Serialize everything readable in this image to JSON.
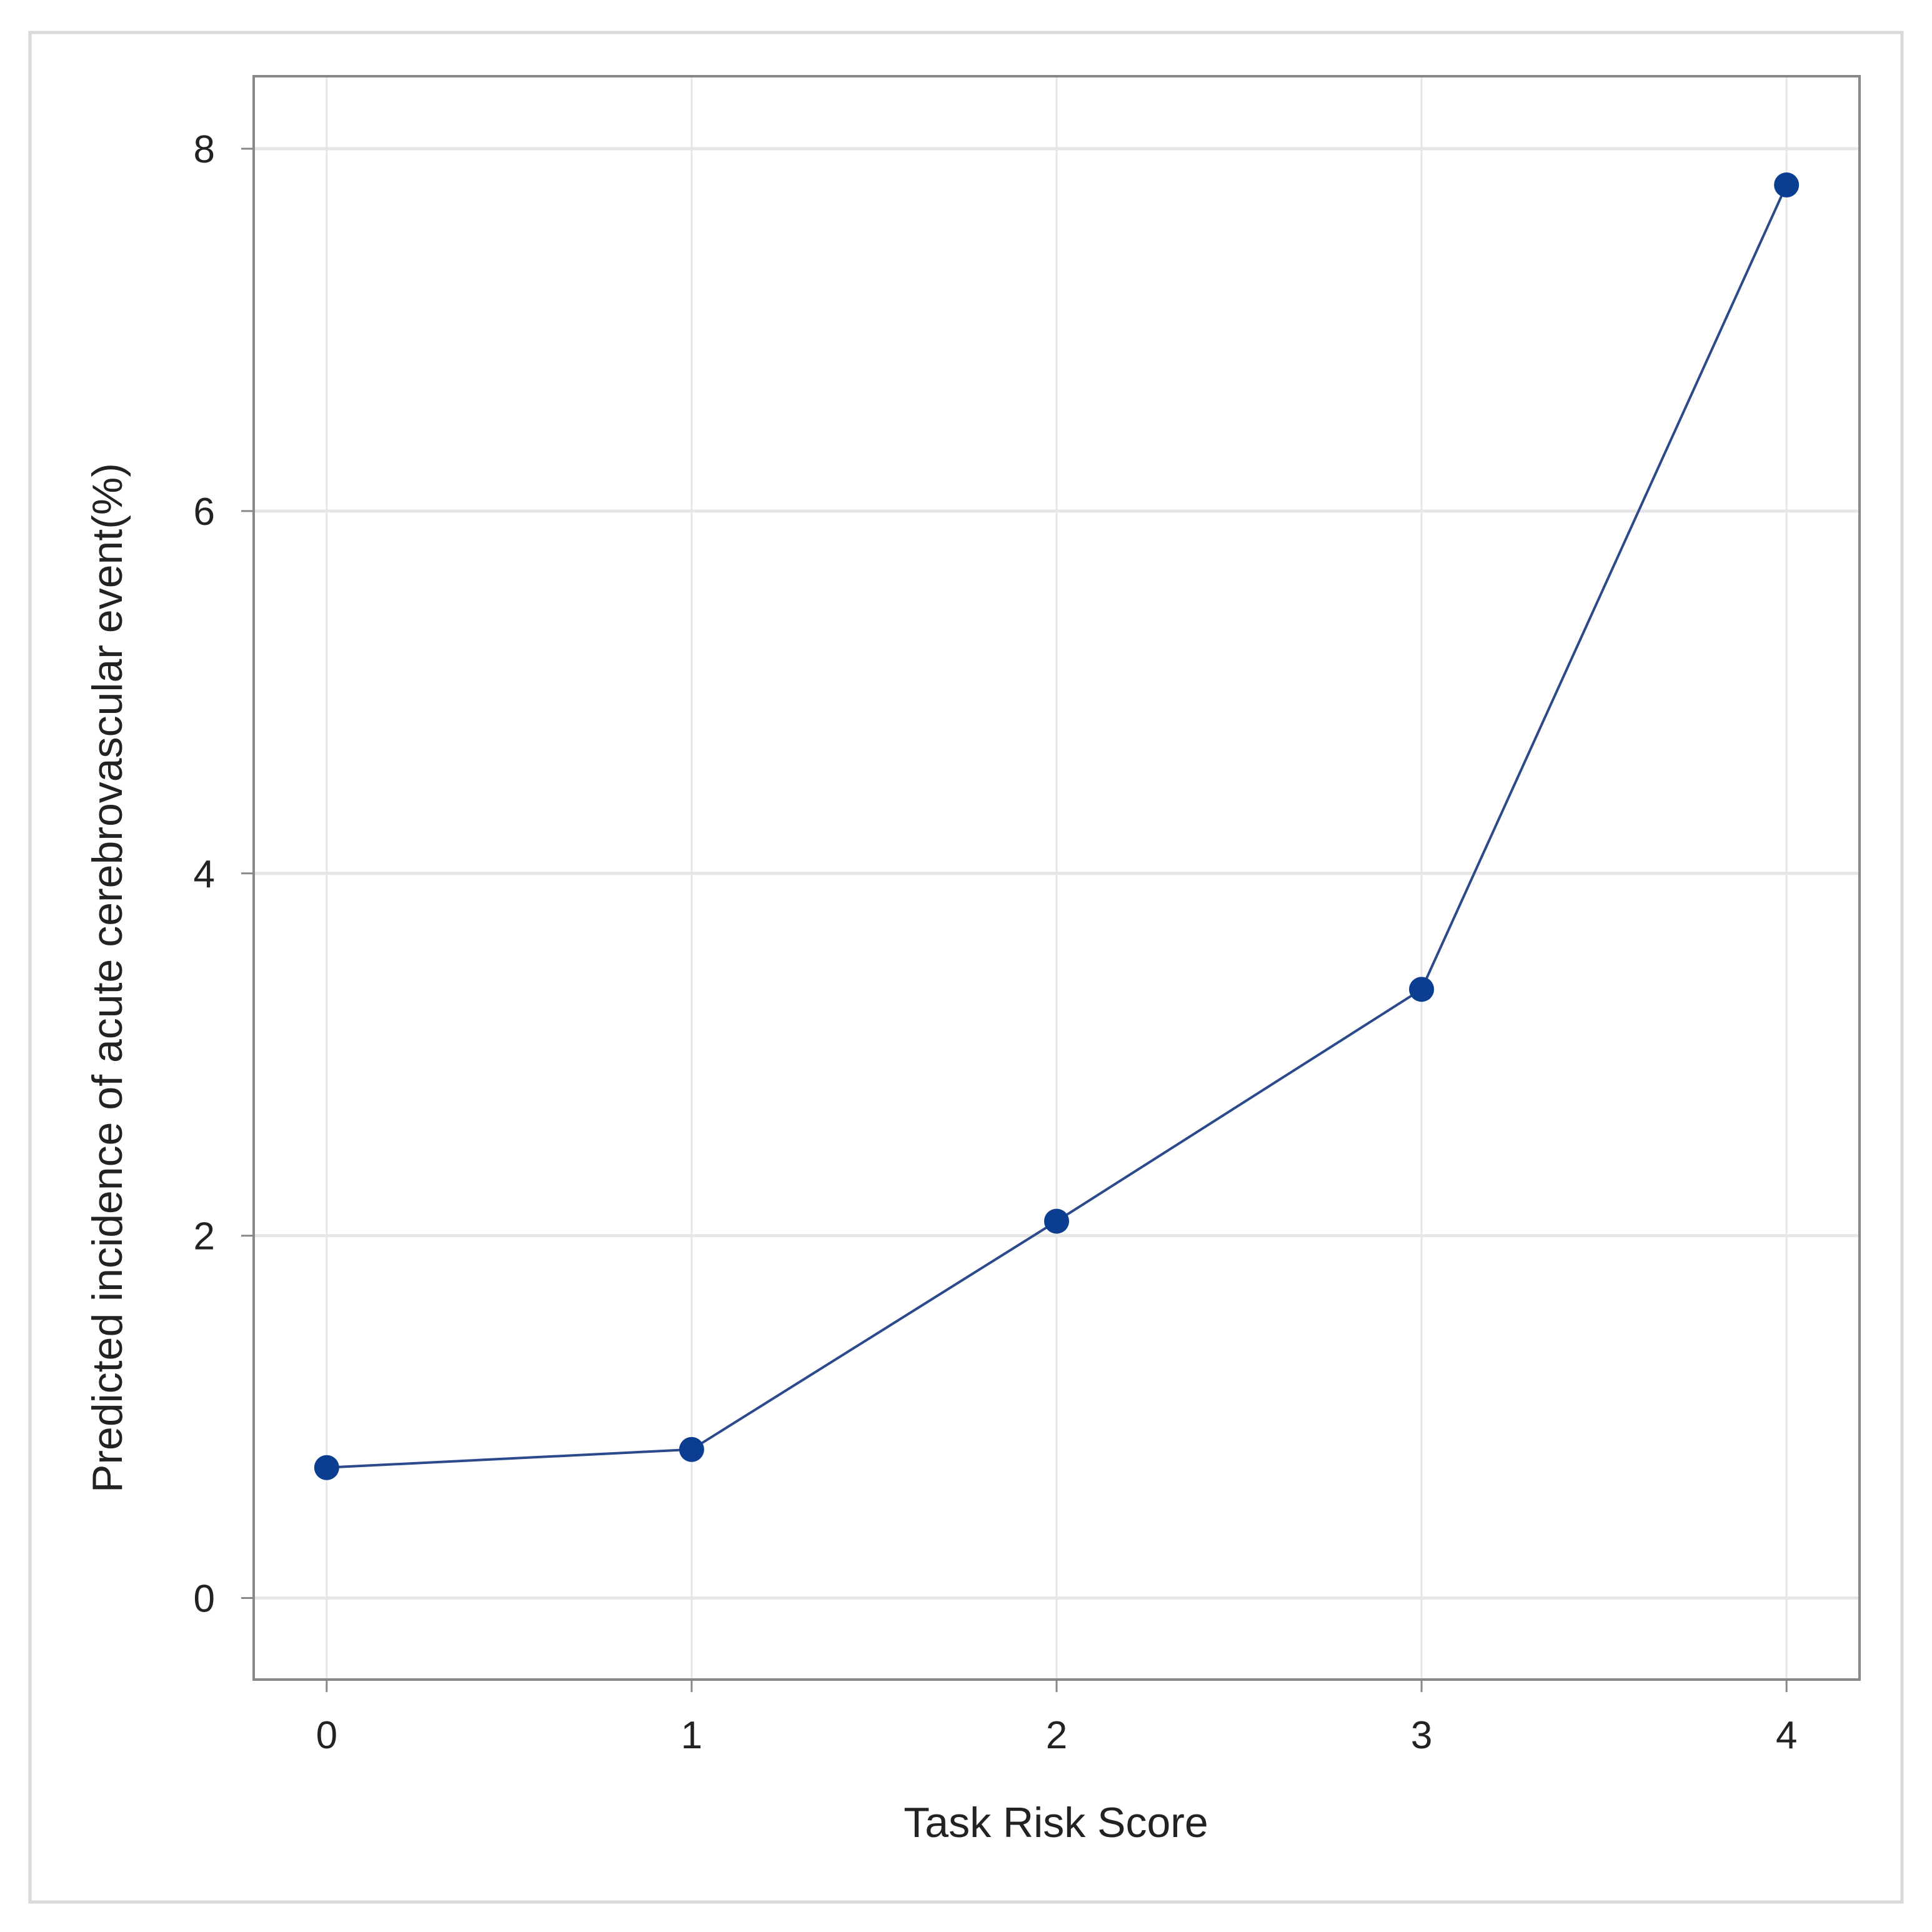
{
  "chart_data": {
    "type": "line",
    "title": "",
    "xlabel": "Task Risk Score",
    "ylabel": "Predicted incidence of acute cerebrovascular event(%)",
    "x": [
      0,
      1,
      2,
      3,
      4
    ],
    "series": [
      {
        "values": [
          0.72,
          0.82,
          2.08,
          3.36,
          7.8
        ]
      }
    ],
    "xlim": [
      -0.2,
      4.2
    ],
    "ylim": [
      -0.45,
      8.4
    ],
    "xticks": [
      0,
      1,
      2,
      3,
      4
    ],
    "yticks": [
      0,
      2,
      4,
      6,
      8
    ],
    "xtick_labels": [
      "0",
      "1",
      "2",
      "3",
      "4"
    ],
    "ytick_labels": [
      "0",
      "2",
      "4",
      "6",
      "8"
    ],
    "grid": true,
    "legend": "none",
    "colors": {
      "line": "#2b4a8b",
      "marker": "#0b3d91",
      "grid": "#e6e6e6",
      "frame": "#888888",
      "outer_border": "#d9d9d9"
    }
  }
}
